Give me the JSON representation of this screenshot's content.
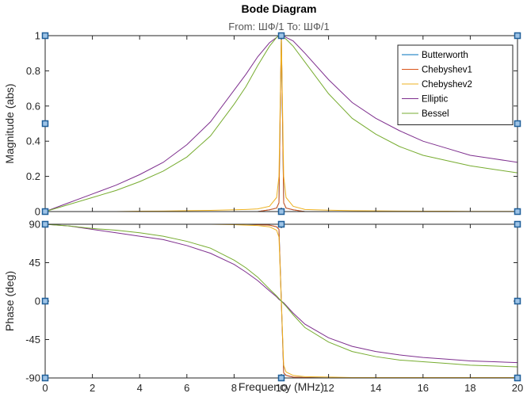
{
  "chart_data": {
    "type": "line",
    "title": "Bode Diagram",
    "subtitle": "From: ШФ/1  To: ШФ/1",
    "xlabel": "Frequency  (MHz)",
    "xlim": [
      0,
      20
    ],
    "x_ticks": [
      "0",
      "2",
      "4",
      "6",
      "8",
      "10",
      "12",
      "14",
      "16",
      "18",
      "20"
    ],
    "grid": false,
    "legend_position": "top-right",
    "colors": {
      "Butterworth": "#0072bd",
      "Chebyshev1": "#d95319",
      "Chebyshev2": "#edb120",
      "Elliptic": "#7e2f8e",
      "Bessel": "#77ac30"
    },
    "panels": [
      {
        "id": "magnitude",
        "ylabel": "Magnitude (abs)",
        "ylim": [
          0,
          1
        ],
        "y_ticks": [
          "1",
          "0.8",
          "0.6",
          "0.4",
          "0.2",
          "0"
        ],
        "x": [
          0,
          1,
          2,
          3,
          4,
          5,
          6,
          7,
          8,
          8.5,
          9,
          9.5,
          9.8,
          9.9,
          10,
          10.1,
          10.2,
          10.5,
          11,
          12,
          13,
          14,
          15,
          16,
          17,
          18,
          19,
          20
        ],
        "series": [
          {
            "name": "Butterworth",
            "values": [
              0,
              0,
              0,
              0,
              0,
              0,
              0,
              0,
              0,
              0,
              0,
              0.01,
              0.02,
              0.05,
              1.0,
              0.05,
              0.02,
              0.01,
              0,
              0,
              0,
              0,
              0,
              0,
              0,
              0,
              0,
              0
            ]
          },
          {
            "name": "Chebyshev1",
            "values": [
              0,
              0,
              0,
              0,
              0,
              0,
              0,
              0,
              0,
              0,
              0,
              0.01,
              0.02,
              0.05,
              1.0,
              0.05,
              0.02,
              0.01,
              0,
              0,
              0,
              0,
              0,
              0,
              0,
              0,
              0,
              0
            ]
          },
          {
            "name": "Chebyshev2",
            "values": [
              0,
              0,
              0,
              0,
              0.002,
              0.003,
              0.005,
              0.007,
              0.01,
              0.012,
              0.015,
              0.03,
              0.08,
              0.2,
              1.0,
              0.2,
              0.08,
              0.03,
              0.012,
              0.008,
              0.005,
              0.004,
              0.003,
              0.002,
              0.002,
              0.001,
              0.001,
              0.001
            ]
          },
          {
            "name": "Elliptic",
            "values": [
              0,
              0.05,
              0.1,
              0.15,
              0.21,
              0.28,
              0.38,
              0.51,
              0.69,
              0.78,
              0.88,
              0.96,
              0.99,
              1.0,
              1.0,
              1.0,
              0.99,
              0.97,
              0.9,
              0.75,
              0.62,
              0.53,
              0.46,
              0.4,
              0.36,
              0.32,
              0.3,
              0.28
            ]
          },
          {
            "name": "Bessel",
            "values": [
              0,
              0.04,
              0.08,
              0.12,
              0.17,
              0.23,
              0.31,
              0.43,
              0.61,
              0.71,
              0.83,
              0.94,
              0.99,
              1.0,
              1.0,
              0.99,
              0.98,
              0.94,
              0.85,
              0.67,
              0.53,
              0.44,
              0.37,
              0.32,
              0.29,
              0.26,
              0.24,
              0.22
            ]
          }
        ]
      },
      {
        "id": "phase",
        "ylabel": "Phase (deg)",
        "ylim": [
          -90,
          90
        ],
        "y_ticks": [
          "90",
          "45",
          "0",
          "-45",
          "-90"
        ],
        "x": [
          0,
          1,
          2,
          3,
          4,
          5,
          6,
          7,
          8,
          8.5,
          9,
          9.5,
          9.8,
          9.9,
          10,
          10.1,
          10.2,
          10.5,
          11,
          12,
          13,
          14,
          15,
          16,
          17,
          18,
          19,
          20
        ],
        "series": [
          {
            "name": "Butterworth",
            "values": [
              90,
              90,
              90,
              90,
              90,
              90,
              90,
              90,
              90,
              90,
              89.5,
              89,
              87,
              84,
              0,
              -84,
              -87,
              -89,
              -89.5,
              -90,
              -90,
              -90,
              -90,
              -90,
              -90,
              -90,
              -90,
              -90
            ]
          },
          {
            "name": "Chebyshev1",
            "values": [
              90,
              90,
              90,
              90,
              90,
              90,
              90,
              90,
              90,
              90,
              89.5,
              89,
              87,
              84,
              0,
              -84,
              -87,
              -89,
              -89.5,
              -90,
              -90,
              -90,
              -90,
              -90,
              -90,
              -90,
              -90,
              -90
            ]
          },
          {
            "name": "Chebyshev2",
            "values": [
              90,
              90,
              90,
              90,
              90,
              90,
              90,
              90,
              89.5,
              89,
              88.5,
              87,
              83,
              75,
              0,
              -75,
              -83,
              -87,
              -88.5,
              -89,
              -89.5,
              -89.5,
              -89.5,
              -89.5,
              -89.5,
              -89.5,
              -89.5,
              -89.5
            ]
          },
          {
            "name": "Elliptic",
            "values": [
              90,
              88,
              84,
              80,
              76,
              72,
              65,
              56,
              43,
              34,
              24,
              12,
              5,
              2,
              0,
              -2,
              -5,
              -14,
              -27,
              -43,
              -53,
              -59,
              -63,
              -66,
              -68,
              -70,
              -71,
              -72
            ]
          },
          {
            "name": "Bessel",
            "values": [
              90,
              88,
              85,
              83,
              80,
              76,
              70,
              62,
              48,
              39,
              28,
              14,
              6,
              3,
              0,
              -3,
              -6,
              -16,
              -31,
              -48,
              -59,
              -65,
              -69,
              -71,
              -73,
              -75,
              -76,
              -77
            ]
          }
        ]
      }
    ],
    "legend_order": [
      "Butterworth",
      "Chebyshev1",
      "Chebyshev2",
      "Elliptic",
      "Bessel"
    ]
  }
}
